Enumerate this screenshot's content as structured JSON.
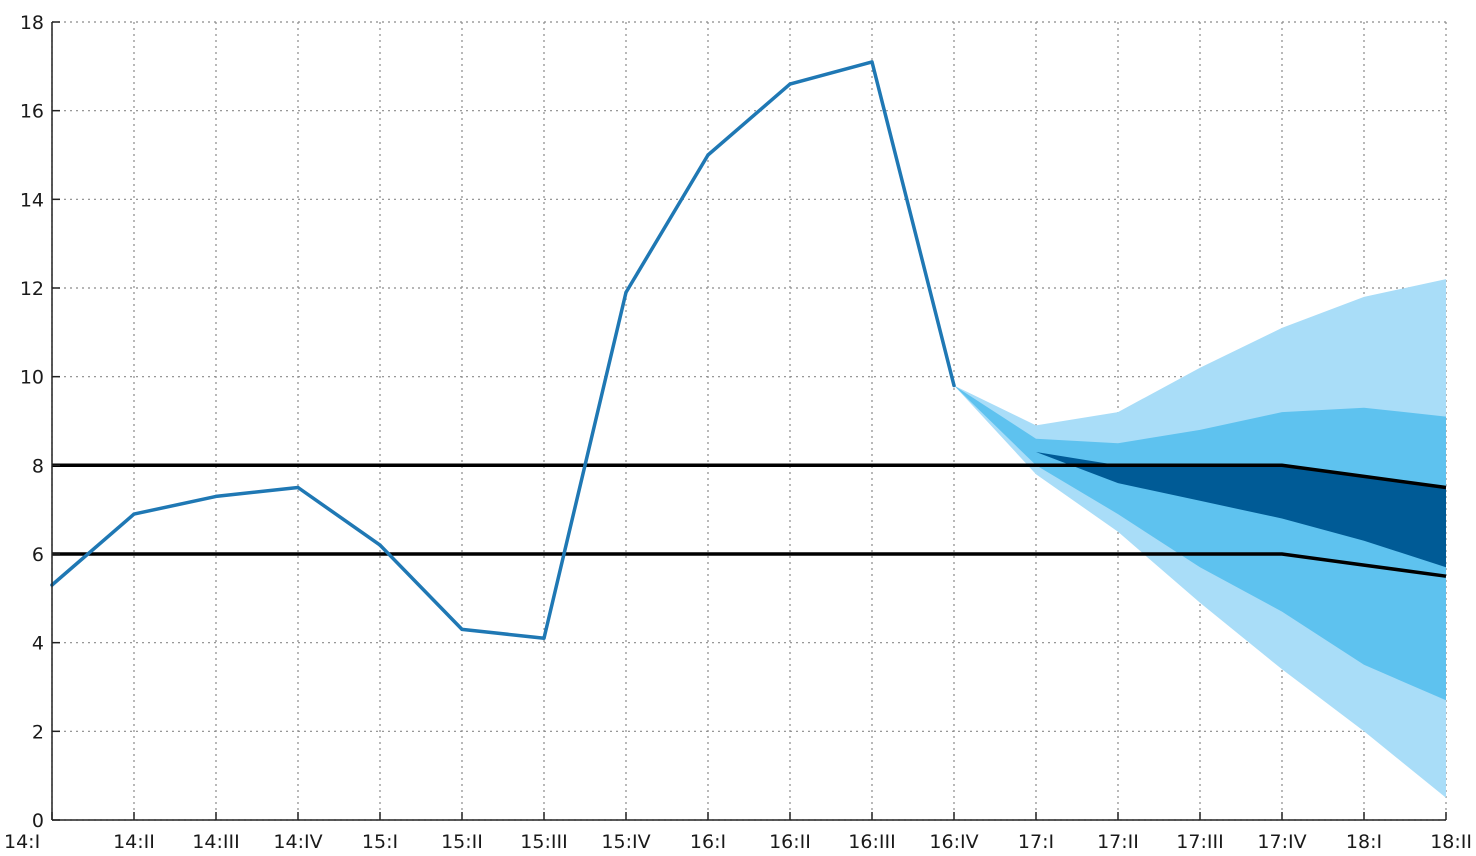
{
  "chart_data": {
    "type": "line",
    "categories": [
      "14:I",
      "14:II",
      "14:III",
      "14:IV",
      "15:I",
      "15:II",
      "15:III",
      "15:IV",
      "16:I",
      "16:II",
      "16:III",
      "16:IV",
      "17:I",
      "17:II",
      "17:III",
      "17:IV",
      "18:I",
      "18:II"
    ],
    "ylim": [
      0,
      18
    ],
    "yticks": [
      0,
      2,
      4,
      6,
      8,
      10,
      12,
      14,
      16,
      18
    ],
    "ytick_labels": [
      "0",
      "2",
      "4",
      "6",
      "8",
      "10",
      "12",
      "14",
      "16",
      "18"
    ],
    "grid": true,
    "series": [
      {
        "role": "actual",
        "color": "#1f78b4",
        "values": [
          5.3,
          6.9,
          7.3,
          7.5,
          6.2,
          4.3,
          4.1,
          11.9,
          15.0,
          16.6,
          17.1,
          9.8,
          null,
          null,
          null,
          null,
          null,
          null
        ]
      }
    ],
    "target_band": {
      "color": "#000000",
      "upper": [
        8.0,
        8.0,
        8.0,
        8.0,
        8.0,
        8.0,
        8.0,
        8.0,
        8.0,
        8.0,
        8.0,
        8.0,
        8.0,
        8.0,
        8.0,
        8.0,
        7.75,
        7.5
      ],
      "lower": [
        6.0,
        6.0,
        6.0,
        6.0,
        6.0,
        6.0,
        6.0,
        6.0,
        6.0,
        6.0,
        6.0,
        6.0,
        6.0,
        6.0,
        6.0,
        6.0,
        5.75,
        5.5
      ]
    },
    "fan": {
      "start_index": 11,
      "bands": [
        {
          "color": "#a9ddf8",
          "upper": [
            9.8,
            8.9,
            9.2,
            10.2,
            11.1,
            11.8,
            12.2
          ],
          "lower": [
            9.8,
            7.8,
            6.5,
            4.9,
            3.4,
            2.0,
            0.5
          ]
        },
        {
          "color": "#5ec2ef",
          "upper": [
            9.8,
            8.6,
            8.5,
            8.8,
            9.2,
            9.3,
            9.1
          ],
          "lower": [
            9.8,
            8.0,
            6.9,
            5.7,
            4.7,
            3.5,
            2.7
          ]
        },
        {
          "color": "#005b96",
          "upper": [
            9.8,
            8.3,
            8.0,
            8.0,
            8.0,
            7.75,
            7.5
          ],
          "lower": [
            9.8,
            8.3,
            7.6,
            7.2,
            6.8,
            6.3,
            5.7
          ]
        }
      ]
    }
  }
}
